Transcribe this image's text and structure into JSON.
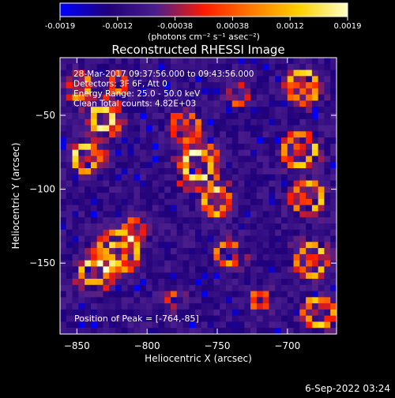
{
  "colorbar": {
    "ticks": [
      "-0.0019",
      "-0.0012",
      "-0.00038",
      "0.00038",
      "0.0012",
      "0.0019"
    ],
    "unit_label": "(photons cm⁻² s⁻¹ asec⁻²)"
  },
  "chart_data": {
    "type": "heatmap",
    "title": "Reconstructed RHESSI Image",
    "xlabel": "Heliocentric X (arcsec)",
    "ylabel": "Heliocentric Y (arcsec)",
    "xlim": [
      -862,
      -665
    ],
    "ylim": [
      -198,
      -11
    ],
    "xticks": [
      -850,
      -800,
      -750,
      -700
    ],
    "yticks": [
      -50,
      -100,
      -150
    ],
    "zlim": [
      -0.0019,
      0.0019
    ],
    "colormap": [
      "#0000ff",
      "#20007a",
      "#4b1e8c",
      "#ff1a00",
      "#ff7a00",
      "#ffd200",
      "#ffffc8"
    ],
    "annotations": [
      "28-Mar-2017 09:37:56.000 to 09:43:56.000",
      "Detectors: 3F 6F, Att 0",
      "Energy Range: 25.0 - 50.0 keV",
      "Clean      Total counts: 4.82E+03"
    ],
    "peak_label": "Position of Peak = [-764,-85]",
    "peak": [
      -764,
      -85
    ],
    "date_stamp": "6-Sep-2022 03:24"
  }
}
